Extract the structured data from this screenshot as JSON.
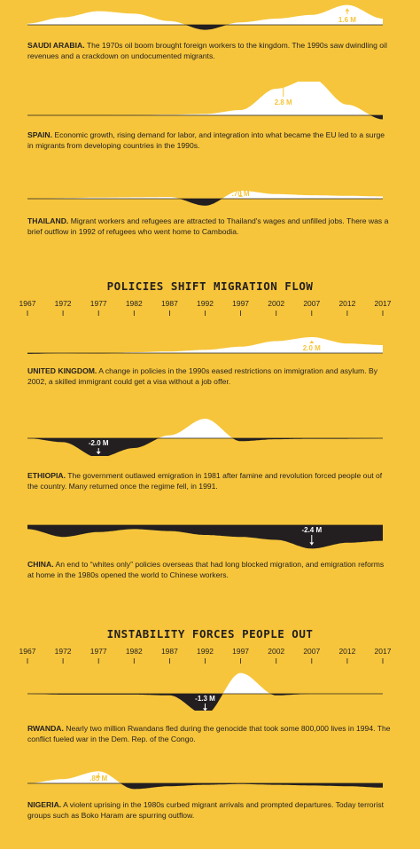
{
  "years": [
    "1967",
    "1972",
    "1977",
    "1982",
    "1987",
    "1992",
    "1997",
    "2002",
    "2007",
    "2012",
    "2017"
  ],
  "section_titles": {
    "policies": "POLICIES SHIFT MIGRATION FLOW",
    "instability": "INSTABILITY FORCES PEOPLE OUT"
  },
  "countries": [
    {
      "id": "saudi-arabia",
      "name": "SAUDI ARABIA.",
      "text": " The 1970s oil boom brought foreign workers to the kingdom. The 1990s saw dwindling oil revenues and a crackdown on undocumented migrants.",
      "peak_label": "1.6 M"
    },
    {
      "id": "spain",
      "name": "SPAIN.",
      "text": " Economic growth, rising demand for labor, and integration into what became the EU led to a surge in migrants from developing countries in the 1990s.",
      "peak_label": "2.8 M"
    },
    {
      "id": "thailand",
      "name": "THAILAND.",
      "text": " Migrant workers and refugees are attracted to Thailand's wages and unfilled jobs. There was a brief outflow in 1992 of refugees who went home to Cambodia.",
      "peak_label": ".70 M"
    },
    {
      "id": "united-kingdom",
      "name": "UNITED KINGDOM.",
      "text": " A change in policies in the 1990s eased restrictions on immigration and asylum. By 2002, a skilled immigrant could get a visa without a job offer.",
      "peak_label": "2.0 M"
    },
    {
      "id": "ethiopia",
      "name": "ETHIOPIA.",
      "text": " The government outlawed emigration in 1981 after famine and revolution forced people out of the country. Many returned once the regime fell, in 1991.",
      "peak_label": "-2.0 M"
    },
    {
      "id": "china",
      "name": "CHINA.",
      "text": " An end to “whites only” policies overseas that had long blocked migration, and emigration reforms at home in the 1980s opened the world to Chinese workers.",
      "peak_label": "-2.4 M"
    },
    {
      "id": "rwanda",
      "name": "RWANDA.",
      "text": " Nearly two million Rwandans fled during the genocide that took some 800,000 lives in 1994. The conflict fueled war in the Dem. Rep. of the Congo.",
      "peak_label": "-1.3 M"
    },
    {
      "id": "nigeria",
      "name": "NIGERIA.",
      "text": " A violent uprising in the 1980s curbed migrant arrivals and prompted departures. Today terrorist groups such as Boko Haram are spurring outflow.",
      "peak_label": ".85 M"
    }
  ],
  "colors": {
    "background": "#f6c53b",
    "inflow": "#ffffff",
    "outflow": "#231f20"
  },
  "chart_data": [
    {
      "type": "area",
      "series_id": "saudi-arabia",
      "x": [
        1967,
        1972,
        1977,
        1982,
        1987,
        1992,
        1997,
        2002,
        2007,
        2012,
        2017
      ],
      "values": [
        0.1,
        0.6,
        1.1,
        0.9,
        0.3,
        -0.4,
        0.2,
        0.5,
        0.8,
        1.6,
        0.5
      ],
      "peak_label": "1.6 M",
      "peak_year": 2012
    },
    {
      "type": "area",
      "series_id": "spain",
      "x": [
        1967,
        1972,
        1977,
        1982,
        1987,
        1992,
        1997,
        2002,
        2007,
        2012,
        2017
      ],
      "values": [
        0,
        0,
        0,
        0.02,
        0.05,
        0.1,
        0.4,
        2.0,
        2.8,
        0.8,
        -0.3
      ],
      "peak_label": "2.8 M",
      "peak_year": 2003
    },
    {
      "type": "area",
      "series_id": "thailand",
      "x": [
        1967,
        1972,
        1977,
        1982,
        1987,
        1992,
        1997,
        2002,
        2007,
        2012,
        2017
      ],
      "values": [
        0,
        0.05,
        0.1,
        0.12,
        0.15,
        -0.6,
        0.7,
        0.4,
        0.3,
        0.25,
        0.2
      ],
      "peak_label": ".70 M",
      "peak_year": 1997
    },
    {
      "type": "area",
      "series_id": "united-kingdom",
      "x": [
        1967,
        1972,
        1977,
        1982,
        1987,
        1992,
        1997,
        2002,
        2007,
        2012,
        2017
      ],
      "values": [
        -0.1,
        0,
        -0.05,
        0.1,
        0.2,
        0.4,
        0.8,
        1.5,
        2.0,
        1.2,
        1.0
      ],
      "peak_label": "2.0 M",
      "peak_year": 2007
    },
    {
      "type": "area",
      "series_id": "ethiopia",
      "x": [
        1967,
        1972,
        1977,
        1982,
        1987,
        1992,
        1997,
        2002,
        2007,
        2012,
        2017
      ],
      "values": [
        0,
        -0.4,
        -2.0,
        -1.0,
        0.3,
        2.0,
        -0.3,
        -0.1,
        -0.05,
        -0.05,
        0
      ],
      "peak_label": "-2.0 M",
      "peak_year": 1977
    },
    {
      "type": "area",
      "series_id": "china",
      "x": [
        1967,
        1972,
        1977,
        1982,
        1987,
        1992,
        1997,
        2002,
        2007,
        2012,
        2017
      ],
      "values": [
        -0.4,
        -1.2,
        -0.7,
        -0.4,
        -0.6,
        -1.0,
        -1.2,
        -1.5,
        -2.4,
        -1.8,
        -1.6
      ],
      "peak_label": "-2.4 M",
      "peak_year": 2007
    },
    {
      "type": "area",
      "series_id": "rwanda",
      "x": [
        1967,
        1972,
        1977,
        1982,
        1987,
        1992,
        1997,
        2002,
        2007,
        2012,
        2017
      ],
      "values": [
        0,
        -0.05,
        -0.05,
        -0.05,
        -0.1,
        -1.3,
        1.3,
        -0.1,
        0,
        0,
        0
      ],
      "peak_label": "-1.3 M",
      "peak_year": 1992
    },
    {
      "type": "area",
      "series_id": "nigeria",
      "x": [
        1967,
        1972,
        1977,
        1982,
        1987,
        1992,
        1997,
        2002,
        2007,
        2012,
        2017
      ],
      "values": [
        0,
        0.3,
        0.85,
        -0.4,
        -0.2,
        -0.1,
        -0.05,
        -0.1,
        -0.15,
        -0.2,
        -0.3
      ],
      "peak_label": ".85 M",
      "peak_year": 1977
    }
  ]
}
